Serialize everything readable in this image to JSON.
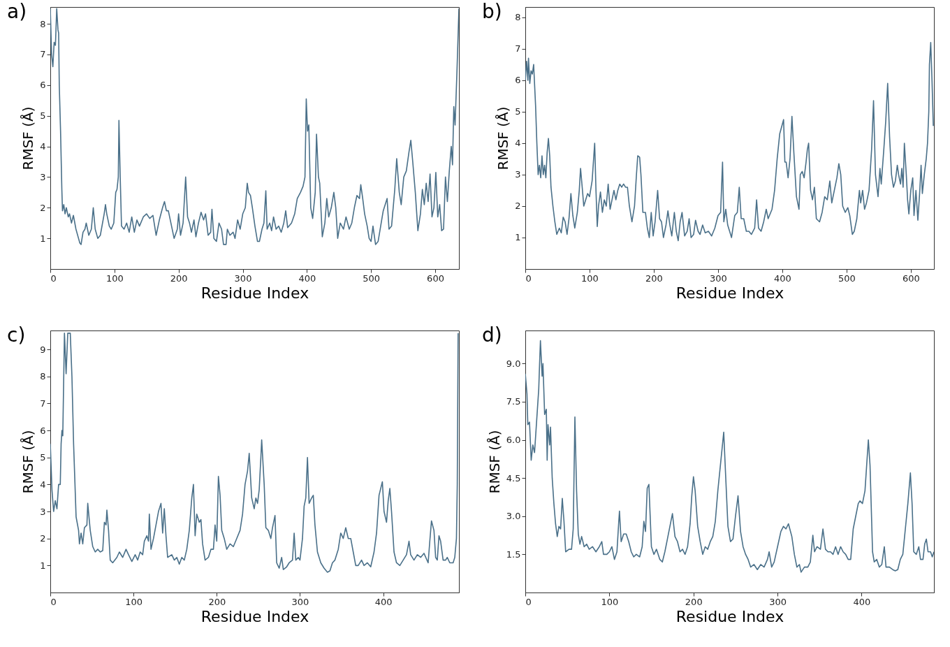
{
  "chart_data": [
    {
      "type": "line",
      "title": "a)",
      "xlabel": "Residue Index",
      "ylabel": "RMSF (Å)",
      "xlim": [
        0,
        637
      ],
      "ylim": [
        0,
        8.55
      ],
      "xticks": [
        0,
        100,
        200,
        300,
        400,
        500,
        600
      ],
      "yticks": [
        1,
        2,
        3,
        4,
        5,
        6,
        7,
        8
      ],
      "x": [
        0,
        2,
        4,
        6,
        8,
        10,
        12,
        13,
        14,
        16,
        18,
        19,
        21,
        23,
        25,
        28,
        30,
        33,
        36,
        40,
        44,
        46,
        48,
        51,
        54,
        56,
        60,
        64,
        67,
        70,
        74,
        78,
        84,
        86,
        88,
        92,
        95,
        99,
        102,
        104,
        106,
        107,
        109,
        111,
        115,
        119,
        123,
        127,
        131,
        135,
        139,
        145,
        150,
        155,
        160,
        165,
        170,
        175,
        178,
        181,
        184,
        188,
        193,
        198,
        200,
        203,
        207,
        211,
        214,
        217,
        220,
        224,
        227,
        231,
        235,
        239,
        242,
        246,
        250,
        252,
        255,
        259,
        263,
        267,
        270,
        274,
        276,
        280,
        285,
        288,
        292,
        296,
        300,
        304,
        307,
        309,
        312,
        315,
        319,
        323,
        326,
        330,
        333,
        336,
        338,
        342,
        345,
        348,
        352,
        356,
        360,
        364,
        367,
        370,
        376,
        381,
        385,
        390,
        394,
        397,
        399,
        401,
        403,
        406,
        409,
        413,
        415,
        418,
        420,
        424,
        428,
        431,
        434,
        438,
        442,
        445,
        448,
        452,
        457,
        461,
        466,
        470,
        474,
        478,
        482,
        484,
        487,
        490,
        494,
        497,
        500,
        503,
        507,
        511,
        515,
        519,
        522,
        525,
        528,
        532,
        537,
        540,
        544,
        547,
        551,
        555,
        559,
        562,
        565,
        569,
        573,
        577,
        580,
        583,
        586,
        589,
        592,
        595,
        598,
        601,
        604,
        607,
        610,
        613,
        616,
        619,
        622,
        625,
        627,
        629,
        631,
        634,
        637
      ],
      "series": [
        {
          "color": "#4a7089",
          "values": [
            8.5,
            7.0,
            6.6,
            7.4,
            7.3,
            8.5,
            7.8,
            7.7,
            6.0,
            4.5,
            2.6,
            1.9,
            2.1,
            1.8,
            2.0,
            1.7,
            1.8,
            1.5,
            1.75,
            1.3,
            1.0,
            0.85,
            0.8,
            1.2,
            1.3,
            1.5,
            1.1,
            1.3,
            2.0,
            1.3,
            1.0,
            1.1,
            1.8,
            2.1,
            1.8,
            1.4,
            1.3,
            1.5,
            2.5,
            2.6,
            3.0,
            4.85,
            3.0,
            1.4,
            1.3,
            1.5,
            1.2,
            1.7,
            1.2,
            1.6,
            1.4,
            1.7,
            1.8,
            1.65,
            1.75,
            1.1,
            1.6,
            2.0,
            2.2,
            1.9,
            1.9,
            1.5,
            1.0,
            1.3,
            1.8,
            1.1,
            1.5,
            3.0,
            1.7,
            1.5,
            1.2,
            1.6,
            1.05,
            1.5,
            1.85,
            1.6,
            1.8,
            1.1,
            1.2,
            1.95,
            1.0,
            0.9,
            1.5,
            1.3,
            0.8,
            0.8,
            1.3,
            1.1,
            1.2,
            1.0,
            1.6,
            1.3,
            1.8,
            2.0,
            2.8,
            2.5,
            2.4,
            2.0,
            1.4,
            0.9,
            0.9,
            1.3,
            1.5,
            2.55,
            1.3,
            1.5,
            1.25,
            1.7,
            1.3,
            1.4,
            1.2,
            1.5,
            1.9,
            1.35,
            1.5,
            1.8,
            2.3,
            2.5,
            2.7,
            3.0,
            5.55,
            4.5,
            4.7,
            2.0,
            1.65,
            2.5,
            4.4,
            3.0,
            2.8,
            1.05,
            1.5,
            2.3,
            1.7,
            2.0,
            2.5,
            2.0,
            1.0,
            1.5,
            1.3,
            1.7,
            1.3,
            1.5,
            2.0,
            2.4,
            2.3,
            2.75,
            2.3,
            1.8,
            1.4,
            1.0,
            0.9,
            1.4,
            0.8,
            0.9,
            1.4,
            1.9,
            2.1,
            2.3,
            1.3,
            1.4,
            2.6,
            3.6,
            2.5,
            2.1,
            3.0,
            3.2,
            3.8,
            4.2,
            3.5,
            2.5,
            1.25,
            1.8,
            2.6,
            2.1,
            2.8,
            2.2,
            3.1,
            1.7,
            2.0,
            3.15,
            1.7,
            2.1,
            1.25,
            1.3,
            3.0,
            2.2,
            3.2,
            4.0,
            3.4,
            5.3,
            4.7,
            6.5,
            8.5
          ]
        }
      ]
    },
    {
      "type": "line",
      "title": "b)",
      "xlabel": "Residue Index",
      "ylabel": "RMSF (Å)",
      "xlim": [
        0,
        636
      ],
      "ylim": [
        0,
        8.33
      ],
      "xticks": [
        0,
        100,
        200,
        300,
        400,
        500,
        600
      ],
      "yticks": [
        1,
        2,
        3,
        4,
        5,
        6,
        7,
        8
      ],
      "x": [
        0,
        2,
        4,
        5,
        7,
        9,
        11,
        13,
        16,
        18,
        20,
        22,
        24,
        26,
        28,
        30,
        32,
        34,
        36,
        38,
        40,
        43,
        46,
        49,
        53,
        56,
        59,
        62,
        65,
        68,
        71,
        74,
        77,
        81,
        84,
        86,
        89,
        91,
        94,
        97,
        100,
        104,
        108,
        110,
        112,
        114,
        117,
        120,
        123,
        126,
        129,
        132,
        135,
        138,
        141,
        144,
        147,
        150,
        153,
        156,
        159,
        162,
        166,
        170,
        173,
        175,
        178,
        180,
        183,
        187,
        190,
        193,
        196,
        199,
        202,
        206,
        209,
        212,
        215,
        219,
        222,
        225,
        228,
        232,
        235,
        238,
        241,
        244,
        248,
        252,
        255,
        258,
        262,
        265,
        269,
        272,
        276,
        280,
        285,
        290,
        295,
        300,
        304,
        307,
        309,
        312,
        315,
        318,
        321,
        326,
        330,
        333,
        336,
        340,
        344,
        348,
        352,
        357,
        360,
        363,
        367,
        371,
        375,
        378,
        384,
        388,
        392,
        396,
        400,
        402,
        404,
        406,
        409,
        412,
        415,
        418,
        422,
        426,
        428,
        431,
        434,
        437,
        439,
        441,
        444,
        447,
        450,
        453,
        458,
        462,
        466,
        470,
        474,
        477,
        481,
        485,
        488,
        491,
        494,
        498,
        502,
        505,
        509,
        512,
        516,
        520,
        522,
        525,
        528,
        531,
        535,
        539,
        542,
        545,
        549,
        552,
        554,
        558,
        561,
        564,
        567,
        570,
        573,
        576,
        579,
        581,
        584,
        586,
        588,
        590,
        593,
        595,
        597,
        600,
        603,
        605,
        608,
        611,
        614,
        616,
        618,
        621,
        624,
        626,
        628,
        629,
        631,
        633,
        635
      ],
      "series": [
        {
          "color": "#4a7089",
          "values": [
            6.0,
            6.6,
            6.0,
            6.7,
            5.9,
            6.3,
            6.2,
            6.5,
            5.2,
            4.0,
            3.0,
            3.3,
            2.9,
            3.6,
            3.0,
            3.3,
            2.9,
            3.7,
            4.15,
            3.6,
            2.6,
            2.0,
            1.5,
            1.1,
            1.3,
            1.15,
            1.65,
            1.5,
            1.1,
            1.6,
            2.4,
            1.7,
            1.3,
            1.8,
            2.5,
            3.2,
            2.5,
            2.0,
            2.2,
            2.4,
            2.3,
            2.8,
            4.0,
            2.5,
            1.35,
            2.0,
            2.45,
            1.8,
            2.2,
            2.0,
            2.7,
            1.9,
            2.2,
            2.5,
            2.2,
            2.5,
            2.7,
            2.6,
            2.7,
            2.6,
            2.6,
            2.0,
            1.5,
            2.0,
            3.0,
            3.6,
            3.55,
            3.0,
            1.8,
            1.8,
            1.3,
            1.0,
            1.8,
            1.05,
            1.5,
            2.5,
            1.6,
            1.5,
            1.0,
            1.4,
            1.85,
            1.4,
            1.05,
            1.8,
            1.2,
            0.9,
            1.5,
            1.8,
            1.05,
            1.2,
            1.6,
            1.0,
            1.1,
            1.55,
            1.2,
            1.1,
            1.4,
            1.15,
            1.2,
            1.05,
            1.3,
            1.7,
            1.8,
            3.4,
            1.5,
            1.9,
            1.4,
            1.2,
            1.0,
            1.7,
            1.8,
            2.6,
            1.6,
            1.6,
            1.2,
            1.2,
            1.1,
            1.3,
            2.2,
            1.3,
            1.2,
            1.5,
            1.9,
            1.6,
            1.9,
            2.5,
            3.5,
            4.3,
            4.6,
            4.75,
            3.4,
            3.4,
            2.9,
            3.5,
            4.85,
            3.7,
            2.3,
            1.9,
            3.0,
            3.1,
            2.9,
            3.4,
            3.8,
            4.0,
            2.5,
            2.2,
            2.6,
            1.6,
            1.5,
            1.8,
            2.3,
            2.2,
            2.8,
            2.1,
            2.5,
            2.9,
            3.35,
            3.0,
            2.0,
            1.8,
            1.95,
            1.7,
            1.1,
            1.2,
            1.6,
            2.5,
            2.1,
            2.5,
            1.9,
            2.1,
            2.5,
            3.8,
            5.35,
            3.0,
            2.3,
            3.2,
            2.7,
            3.8,
            4.7,
            5.9,
            4.2,
            3.0,
            2.6,
            2.8,
            3.3,
            3.0,
            2.7,
            3.2,
            2.6,
            4.0,
            3.0,
            2.2,
            1.75,
            2.5,
            2.9,
            1.7,
            2.5,
            1.55,
            2.5,
            3.3,
            2.4,
            3.0,
            3.5,
            4.0,
            5.0,
            6.5,
            7.2,
            6.0,
            4.55
          ]
        }
      ]
    },
    {
      "type": "line",
      "title": "c)",
      "xlabel": "Residue Index",
      "ylabel": "RMSF (Å)",
      "xlim": [
        0,
        491
      ],
      "ylim": [
        0,
        9.7
      ],
      "xticks": [
        0,
        100,
        200,
        300,
        400
      ],
      "yticks": [
        1,
        2,
        3,
        4,
        5,
        6,
        7,
        8,
        9
      ],
      "x": [
        0,
        2,
        4,
        6,
        8,
        10,
        12,
        13,
        14,
        15,
        17,
        19,
        21,
        24,
        26,
        28,
        31,
        34,
        35,
        37,
        39,
        41,
        44,
        45,
        48,
        51,
        54,
        57,
        60,
        63,
        65,
        67,
        68,
        70,
        72,
        75,
        80,
        83,
        87,
        91,
        94,
        98,
        102,
        105,
        108,
        111,
        113,
        116,
        118,
        119,
        121,
        124,
        127,
        130,
        133,
        135,
        137,
        139,
        141,
        146,
        149,
        152,
        155,
        158,
        161,
        164,
        167,
        170,
        172,
        174,
        176,
        179,
        181,
        183,
        186,
        190,
        193,
        196,
        198,
        200,
        202,
        204,
        206,
        209,
        212,
        216,
        220,
        224,
        228,
        231,
        234,
        237,
        239,
        242,
        245,
        247,
        249,
        251,
        253,
        254,
        257,
        259,
        262,
        265,
        267,
        270,
        272,
        275,
        278,
        280,
        284,
        287,
        291,
        293,
        295,
        298,
        300,
        303,
        305,
        307,
        309,
        311,
        314,
        316,
        318,
        321,
        325,
        329,
        333,
        336,
        339,
        342,
        346,
        349,
        352,
        355,
        358,
        361,
        364,
        367,
        370,
        374,
        377,
        381,
        385,
        389,
        392,
        395,
        399,
        401,
        404,
        406,
        408,
        410,
        413,
        416,
        420,
        424,
        428,
        431,
        433,
        437,
        441,
        445,
        449,
        454,
        456,
        458,
        461,
        463,
        465,
        467,
        469,
        472,
        475,
        477,
        480,
        484,
        486,
        488,
        489,
        490
      ],
      "series": [
        {
          "color": "#4a7089",
          "values": [
            5.5,
            3.8,
            3.0,
            3.4,
            3.1,
            4.0,
            4.0,
            5.5,
            6.0,
            5.8,
            9.6,
            8.1,
            9.6,
            9.6,
            8.0,
            5.5,
            2.8,
            2.3,
            1.8,
            2.2,
            1.8,
            2.4,
            2.5,
            3.3,
            2.3,
            1.7,
            1.5,
            1.6,
            1.5,
            1.55,
            2.6,
            2.5,
            3.05,
            2.3,
            1.2,
            1.1,
            1.3,
            1.5,
            1.3,
            1.6,
            1.4,
            1.15,
            1.4,
            1.2,
            1.5,
            1.4,
            1.9,
            2.1,
            1.9,
            2.9,
            1.6,
            2.0,
            2.5,
            3.0,
            3.3,
            2.2,
            3.1,
            2.1,
            1.3,
            1.4,
            1.2,
            1.3,
            1.05,
            1.3,
            1.2,
            1.6,
            2.3,
            3.5,
            4.0,
            2.1,
            2.9,
            2.6,
            2.7,
            1.8,
            1.2,
            1.3,
            1.6,
            1.6,
            2.5,
            1.9,
            4.3,
            3.6,
            2.3,
            2.0,
            1.6,
            1.8,
            1.7,
            2.0,
            2.3,
            2.9,
            4.0,
            4.5,
            5.15,
            3.5,
            3.1,
            3.5,
            3.3,
            3.8,
            5.0,
            5.65,
            4.0,
            2.4,
            2.3,
            2.0,
            2.4,
            2.85,
            1.1,
            0.9,
            1.3,
            0.85,
            0.95,
            1.1,
            1.2,
            2.2,
            1.2,
            1.3,
            1.2,
            2.0,
            3.2,
            3.5,
            5.0,
            3.3,
            3.5,
            3.6,
            2.5,
            1.5,
            1.1,
            0.9,
            0.75,
            0.8,
            1.1,
            1.2,
            1.6,
            2.2,
            2.0,
            2.4,
            2.0,
            2.0,
            1.5,
            1.0,
            1.0,
            1.2,
            1.0,
            1.1,
            0.95,
            1.5,
            2.2,
            3.6,
            4.1,
            3.0,
            2.6,
            3.4,
            3.85,
            3.0,
            1.5,
            1.1,
            1.0,
            1.2,
            1.4,
            1.9,
            1.4,
            1.2,
            1.4,
            1.3,
            1.45,
            1.1,
            1.9,
            2.65,
            2.3,
            1.3,
            1.2,
            2.1,
            1.9,
            1.2,
            1.2,
            1.3,
            1.1,
            1.1,
            1.3,
            2.0,
            4.0,
            9.6
          ]
        }
      ]
    },
    {
      "type": "line",
      "title": "d)",
      "xlabel": "Residue Index",
      "ylabel": "RMSF (Å)",
      "xlim": [
        0,
        486
      ],
      "ylim": [
        0,
        10.3
      ],
      "xticks": [
        0,
        100,
        200,
        300,
        400
      ],
      "yticks": [
        1.5,
        {
          "value": 3,
          "label": "3.0"
        },
        4.5,
        {
          "value": 6,
          "label": "6.0"
        },
        7.5,
        {
          "value": 9,
          "label": "9.0"
        }
      ],
      "x": [
        0,
        2,
        3,
        5,
        7,
        9,
        11,
        14,
        16,
        17,
        18,
        20,
        21,
        23,
        25,
        26,
        27,
        29,
        30,
        32,
        34,
        36,
        38,
        40,
        42,
        44,
        46,
        48,
        52,
        55,
        57,
        59,
        61,
        63,
        65,
        67,
        70,
        73,
        76,
        80,
        84,
        88,
        91,
        93,
        97,
        100,
        103,
        106,
        109,
        111,
        112,
        114,
        117,
        120,
        123,
        126,
        129,
        132,
        136,
        139,
        141,
        143,
        145,
        147,
        150,
        153,
        156,
        160,
        163,
        166,
        169,
        172,
        175,
        178,
        181,
        184,
        187,
        190,
        193,
        196,
        198,
        200,
        202,
        205,
        208,
        211,
        214,
        217,
        220,
        223,
        226,
        229,
        236,
        238,
        241,
        244,
        247,
        250,
        253,
        256,
        259,
        262,
        265,
        268,
        272,
        276,
        280,
        284,
        288,
        290,
        293,
        296,
        300,
        304,
        307,
        310,
        313,
        317,
        320,
        323,
        326,
        328,
        332,
        336,
        339,
        342,
        344,
        347,
        351,
        354,
        357,
        360,
        363,
        366,
        369,
        372,
        375,
        378,
        381,
        384,
        387,
        390,
        393,
        396,
        398,
        401,
        404,
        408,
        410,
        413,
        415,
        418,
        421,
        424,
        427,
        429,
        433,
        437,
        440,
        443,
        446,
        449,
        452,
        455,
        458,
        460,
        462,
        465,
        468,
        470,
        473,
        475,
        477,
        479,
        482,
        484,
        486
      ],
      "series": [
        {
          "color": "#4a7089",
          "values": [
            8.6,
            7.8,
            6.6,
            6.7,
            5.2,
            5.8,
            5.5,
            7.0,
            8.0,
            9.0,
            9.9,
            8.5,
            9.0,
            7.0,
            7.2,
            5.2,
            6.6,
            5.8,
            6.5,
            4.5,
            3.5,
            2.7,
            2.2,
            2.6,
            2.5,
            3.7,
            2.8,
            1.6,
            1.7,
            1.7,
            2.5,
            6.9,
            4.0,
            2.3,
            1.9,
            2.2,
            1.8,
            1.9,
            1.7,
            1.8,
            1.6,
            1.8,
            2.0,
            1.5,
            1.5,
            1.6,
            1.8,
            1.3,
            1.6,
            2.7,
            3.2,
            2.0,
            2.3,
            2.3,
            2.0,
            1.6,
            1.4,
            1.5,
            1.4,
            1.8,
            2.8,
            2.4,
            4.1,
            4.25,
            1.8,
            1.5,
            1.7,
            1.3,
            1.2,
            1.6,
            2.1,
            2.6,
            3.1,
            2.2,
            2.0,
            1.6,
            1.7,
            1.5,
            1.8,
            2.7,
            3.8,
            4.55,
            4.0,
            2.6,
            2.0,
            1.5,
            1.8,
            1.7,
            2.0,
            2.2,
            2.8,
            4.0,
            6.3,
            4.8,
            2.6,
            2.0,
            2.1,
            3.0,
            3.8,
            2.4,
            1.8,
            1.5,
            1.3,
            1.0,
            1.1,
            0.9,
            1.1,
            1.0,
            1.3,
            1.6,
            1.0,
            1.2,
            1.8,
            2.4,
            2.6,
            2.5,
            2.7,
            2.2,
            1.5,
            1.0,
            1.1,
            0.8,
            1.0,
            1.0,
            1.2,
            2.25,
            1.6,
            1.8,
            1.7,
            2.5,
            1.7,
            1.6,
            1.6,
            1.5,
            1.8,
            1.5,
            1.8,
            1.6,
            1.5,
            1.3,
            1.3,
            2.5,
            3.0,
            3.5,
            3.6,
            3.5,
            4.0,
            6.0,
            5.0,
            1.6,
            1.2,
            1.3,
            1.0,
            1.1,
            1.8,
            1.0,
            1.0,
            0.9,
            0.85,
            0.9,
            1.3,
            1.5,
            2.5,
            3.5,
            4.7,
            3.5,
            1.6,
            1.5,
            1.8,
            1.3,
            1.3,
            1.9,
            2.1,
            1.6,
            1.6,
            1.4,
            1.6
          ]
        }
      ]
    }
  ]
}
